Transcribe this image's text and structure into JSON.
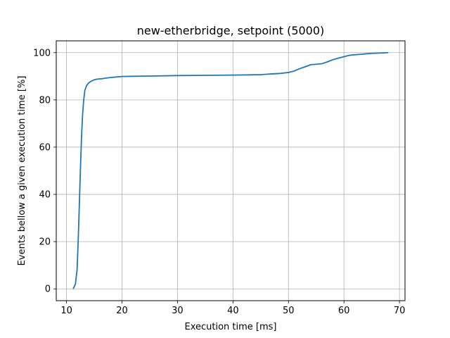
{
  "chart_data": {
    "type": "line",
    "title": "new-etherbridge, setpoint (5000)",
    "xlabel": "Execution time [ms]",
    "ylabel": "Events bellow a given execution time [%]",
    "xlim": [
      8.15,
      71.0
    ],
    "ylim": [
      -5,
      105
    ],
    "xticks": [
      10,
      20,
      30,
      40,
      50,
      60,
      70
    ],
    "yticks": [
      0,
      20,
      40,
      60,
      80,
      100
    ],
    "grid": true,
    "line_color": "#1f77b4",
    "series": [
      {
        "x": [
          11.2,
          11.6,
          11.9,
          12.1,
          12.3,
          12.5,
          12.7,
          12.9,
          13.1,
          13.3,
          13.6,
          14.0,
          14.5,
          15.0,
          15.5,
          16.0,
          16.5,
          17.0,
          18.0,
          19.0,
          20.0,
          22.0,
          25.0,
          30.0,
          35.0,
          40.0,
          43.0,
          45.0,
          47.0,
          48.5,
          50.0,
          51.0,
          52.0,
          53.0,
          54.0,
          55.0,
          56.0,
          57.0,
          58.0,
          59.0,
          60.0,
          61.0,
          62.0,
          63.0,
          64.0,
          65.0,
          66.0,
          67.0,
          68.0
        ],
        "y": [
          0,
          2,
          8,
          20,
          35,
          50,
          64,
          74,
          80,
          84,
          86,
          87.2,
          88.0,
          88.5,
          88.8,
          88.9,
          89.0,
          89.2,
          89.5,
          89.7,
          89.9,
          90.0,
          90.1,
          90.3,
          90.4,
          90.5,
          90.6,
          90.7,
          91.0,
          91.2,
          91.6,
          92.2,
          93.2,
          94.0,
          94.9,
          95.1,
          95.3,
          96.1,
          97.0,
          97.7,
          98.3,
          98.9,
          99.1,
          99.3,
          99.5,
          99.7,
          99.8,
          99.9,
          100
        ]
      }
    ]
  }
}
